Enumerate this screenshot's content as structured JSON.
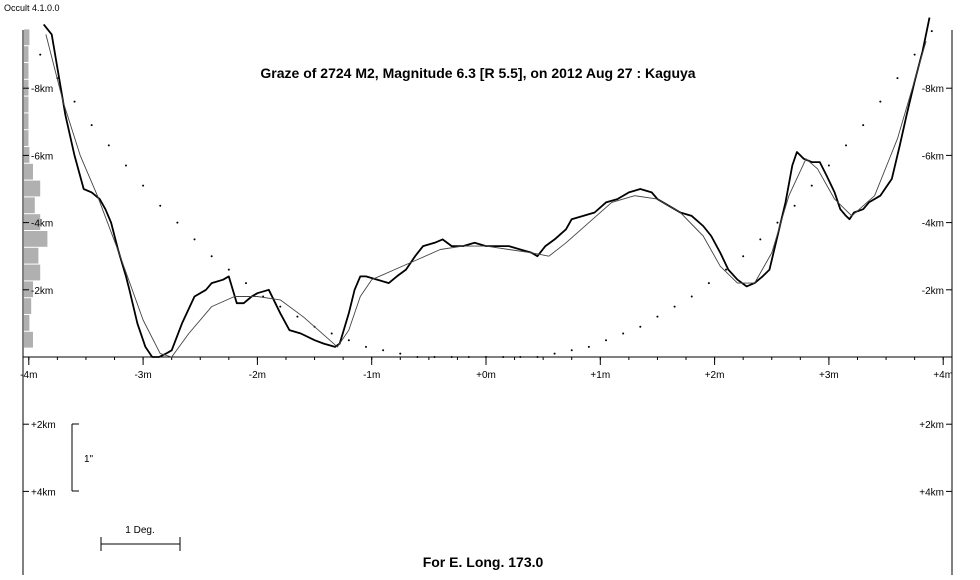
{
  "app_version": "Occult 4.1.0.0",
  "footer": "For E. Long. 173.0",
  "scale_bars": {
    "vertical_label": "1\"",
    "horizontal_label": "1 Deg."
  },
  "chart_data": {
    "type": "line",
    "title": "Graze of  2724 M2,  Magnitude 6.3 [R 5.5],  on 2012 Aug 27  :  Kaguya",
    "x_ticks": [
      {
        "v": -4,
        "label": "-4m"
      },
      {
        "v": -3,
        "label": "-3m"
      },
      {
        "v": -2,
        "label": "-2m"
      },
      {
        "v": -1,
        "label": "-1m"
      },
      {
        "v": 0,
        "label": "+0m"
      },
      {
        "v": 1,
        "label": "+1m"
      },
      {
        "v": 2,
        "label": "+2m"
      },
      {
        "v": 3,
        "label": "+3m"
      },
      {
        "v": 4,
        "label": "+4m"
      }
    ],
    "y_ticks": [
      {
        "v": -8,
        "label": "-8km"
      },
      {
        "v": -6,
        "label": "-6km"
      },
      {
        "v": -4,
        "label": "-4km"
      },
      {
        "v": -2,
        "label": "-2km"
      },
      {
        "v": 2,
        "label": "+2km"
      },
      {
        "v": 4,
        "label": "+4km"
      }
    ],
    "xlim": [
      -4,
      4
    ],
    "ylim": [
      -9.8,
      6.4
    ],
    "histogram": {
      "y": [
        -9.5,
        -9.0,
        -8.5,
        -8.0,
        -7.5,
        -7.0,
        -6.5,
        -6.0,
        -5.5,
        -5.0,
        -4.5,
        -4.0,
        -3.5,
        -3.0,
        -2.5,
        -2.0,
        -1.5,
        -1.0,
        -0.5
      ],
      "width": [
        0.6,
        0.5,
        0.5,
        0.5,
        0.5,
        0.5,
        0.5,
        0.6,
        1.0,
        1.8,
        1.2,
        1.8,
        2.6,
        1.6,
        1.8,
        1.0,
        0.8,
        0.6,
        1.0
      ]
    },
    "series": [
      {
        "style": "profile",
        "x": [
          -3.87,
          -3.8,
          -3.75,
          -3.68,
          -3.6,
          -3.52,
          -3.45,
          -3.38,
          -3.33,
          -3.28,
          -3.22,
          -3.15,
          -3.12,
          -3.05,
          -2.98,
          -2.92,
          -2.86,
          -2.8,
          -2.75,
          -2.66,
          -2.55,
          -2.45,
          -2.4,
          -2.3,
          -2.25,
          -2.18,
          -2.12,
          -2.05,
          -2.0,
          -1.9,
          -1.8,
          -1.72,
          -1.62,
          -1.5,
          -1.42,
          -1.32,
          -1.28,
          -1.2,
          -1.15,
          -1.1,
          -1.05,
          -0.95,
          -0.85,
          -0.78,
          -0.7,
          -0.62,
          -0.55,
          -0.45,
          -0.38,
          -0.3,
          -0.2,
          -0.1,
          0.0,
          0.1,
          0.2,
          0.3,
          0.4,
          0.45,
          0.52,
          0.6,
          0.7,
          0.75,
          0.85,
          0.95,
          1.05,
          1.15,
          1.25,
          1.35,
          1.45,
          1.5,
          1.6,
          1.7,
          1.8,
          1.9,
          1.97,
          2.05,
          2.12,
          2.2,
          2.28,
          2.35,
          2.42,
          2.48,
          2.55,
          2.62,
          2.68,
          2.72,
          2.78,
          2.85,
          2.92,
          2.98,
          3.05,
          3.1,
          3.15,
          3.18,
          3.22,
          3.3,
          3.35,
          3.45,
          3.55,
          3.62,
          3.68,
          3.75,
          3.82,
          3.88
        ],
        "y": [
          -9.9,
          -9.6,
          -8.6,
          -7.2,
          -6.0,
          -5.0,
          -4.9,
          -4.7,
          -4.4,
          -4.0,
          -3.2,
          -2.4,
          -2.0,
          -1.0,
          -0.3,
          0.0,
          0.0,
          -0.1,
          -0.2,
          -1.0,
          -1.8,
          -2.0,
          -2.2,
          -2.3,
          -2.4,
          -1.6,
          -1.6,
          -1.8,
          -1.9,
          -2.0,
          -1.3,
          -0.8,
          -0.7,
          -0.5,
          -0.4,
          -0.3,
          -0.4,
          -1.3,
          -2.0,
          -2.4,
          -2.4,
          -2.3,
          -2.2,
          -2.4,
          -2.6,
          -3.0,
          -3.3,
          -3.4,
          -3.5,
          -3.3,
          -3.3,
          -3.4,
          -3.3,
          -3.3,
          -3.3,
          -3.2,
          -3.1,
          -3.0,
          -3.3,
          -3.5,
          -3.8,
          -4.1,
          -4.2,
          -4.3,
          -4.6,
          -4.7,
          -4.9,
          -5.0,
          -4.9,
          -4.7,
          -4.5,
          -4.3,
          -4.2,
          -3.9,
          -3.6,
          -3.1,
          -2.6,
          -2.3,
          -2.1,
          -2.2,
          -2.4,
          -2.6,
          -3.6,
          -4.6,
          -5.7,
          -6.1,
          -5.9,
          -5.8,
          -5.8,
          -5.4,
          -4.9,
          -4.4,
          -4.2,
          -4.1,
          -4.3,
          -4.4,
          -4.6,
          -4.8,
          -5.3,
          -6.3,
          -7.2,
          -8.2,
          -9.1,
          -10.1
        ]
      },
      {
        "style": "smooth",
        "x": [
          -3.85,
          -3.7,
          -3.55,
          -3.4,
          -3.2,
          -3.0,
          -2.85,
          -2.75,
          -2.6,
          -2.4,
          -2.2,
          -2.0,
          -1.8,
          -1.6,
          -1.4,
          -1.3,
          -1.2,
          -1.1,
          -1.0,
          -0.8,
          -0.6,
          -0.4,
          -0.2,
          0.0,
          0.2,
          0.4,
          0.55,
          0.7,
          0.9,
          1.1,
          1.3,
          1.5,
          1.7,
          1.9,
          2.05,
          2.2,
          2.35,
          2.5,
          2.65,
          2.8,
          2.9,
          3.05,
          3.2,
          3.4,
          3.6,
          3.85
        ],
        "y": [
          -9.6,
          -7.6,
          -6.0,
          -4.8,
          -3.0,
          -1.1,
          -0.1,
          0.0,
          -0.7,
          -1.5,
          -1.8,
          -1.8,
          -1.7,
          -1.2,
          -0.6,
          -0.3,
          -0.8,
          -1.8,
          -2.3,
          -2.6,
          -2.9,
          -3.2,
          -3.3,
          -3.3,
          -3.2,
          -3.1,
          -3.0,
          -3.4,
          -4.0,
          -4.6,
          -4.8,
          -4.7,
          -4.3,
          -3.6,
          -2.7,
          -2.2,
          -2.2,
          -3.1,
          -4.8,
          -5.9,
          -5.6,
          -4.7,
          -4.2,
          -4.8,
          -6.5,
          -9.4
        ]
      }
    ],
    "dotted_curve": {
      "x": [
        -3.9,
        -3.75,
        -3.6,
        -3.45,
        -3.3,
        -3.15,
        -3.0,
        -2.85,
        -2.7,
        -2.55,
        -2.4,
        -2.25,
        -2.1,
        -1.95,
        -1.8,
        -1.65,
        -1.5,
        -1.35,
        -1.2,
        -1.05,
        -0.9,
        -0.75,
        -0.6,
        -0.45,
        -0.3,
        -0.15,
        0.0,
        0.15,
        0.3,
        0.45,
        0.6,
        0.75,
        0.9,
        1.05,
        1.2,
        1.35,
        1.5,
        1.65,
        1.8,
        1.95,
        2.1,
        2.25,
        2.4,
        2.55,
        2.7,
        2.85,
        3.0,
        3.15,
        3.3,
        3.45,
        3.6,
        3.75,
        3.9
      ],
      "y": [
        -9.0,
        -8.3,
        -7.6,
        -6.9,
        -6.3,
        -5.7,
        -5.1,
        -4.5,
        -4.0,
        -3.5,
        -3.0,
        -2.6,
        -2.2,
        -1.8,
        -1.5,
        -1.2,
        -0.9,
        -0.7,
        -0.5,
        -0.3,
        -0.2,
        -0.1,
        0.0,
        0.0,
        0.0,
        0.0,
        0.0,
        0.0,
        0.0,
        0.0,
        -0.1,
        -0.2,
        -0.3,
        -0.5,
        -0.7,
        -0.9,
        -1.2,
        -1.5,
        -1.8,
        -2.2,
        -2.6,
        -3.0,
        -3.5,
        -4.0,
        -4.5,
        -5.1,
        -5.7,
        -6.3,
        -6.9,
        -7.6,
        -8.3,
        -9.0,
        -9.7
      ]
    }
  }
}
